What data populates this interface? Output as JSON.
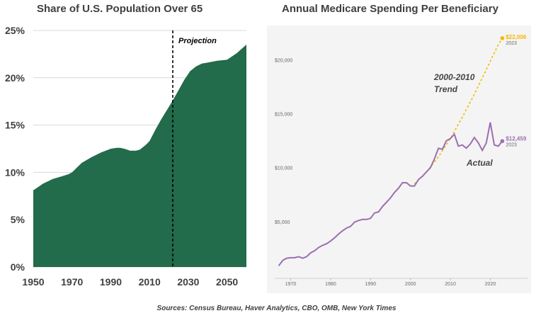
{
  "footer": "Sources: Census Bureau, Haver Analytics, CBO, OMB, New York Times",
  "colors": {
    "area_green": "#226b4b",
    "actual_purple": "#9b6fb0",
    "trend_gold": "#f5b800",
    "panel_bg": "#f4f4f4"
  },
  "chart_data": [
    {
      "type": "area",
      "title": "Share of U.S. Population  Over 65",
      "xlabel": "",
      "ylabel": "",
      "xlim": [
        1950,
        2060
      ],
      "ylim": [
        0,
        25
      ],
      "x_ticks": [
        "1950",
        "1970",
        "1990",
        "2010",
        "2030",
        "2050"
      ],
      "y_ticks": [
        "0%",
        "5%",
        "10%",
        "15%",
        "20%",
        "25%"
      ],
      "grid": true,
      "annotation": "Projection",
      "projection_start": 2022,
      "x": [
        1950,
        1955,
        1960,
        1965,
        1968,
        1970,
        1975,
        1980,
        1985,
        1990,
        1993,
        1995,
        1997,
        2000,
        2003,
        2005,
        2008,
        2010,
        2013,
        2016,
        2019,
        2022,
        2025,
        2028,
        2031,
        2034,
        2037,
        2040,
        2045,
        2050,
        2055,
        2060
      ],
      "values": [
        8.1,
        8.8,
        9.3,
        9.6,
        9.8,
        10.0,
        11.0,
        11.6,
        12.1,
        12.5,
        12.6,
        12.6,
        12.5,
        12.3,
        12.3,
        12.4,
        12.9,
        13.3,
        14.5,
        15.6,
        16.6,
        17.6,
        18.7,
        19.8,
        20.7,
        21.2,
        21.5,
        21.6,
        21.8,
        21.9,
        22.6,
        23.5
      ]
    },
    {
      "type": "line",
      "title": "Annual Medicare Spending Per Beneficiary",
      "xlabel": "",
      "ylabel": "",
      "xlim": [
        1966,
        2024
      ],
      "ylim": [
        0,
        22000
      ],
      "x_ticks": [
        "1970",
        "1980",
        "1990",
        "2000",
        "2010",
        "2020"
      ],
      "y_ticks": [
        "$5,000",
        "$10,000",
        "$15,000",
        "$20,000"
      ],
      "grid": false,
      "series": [
        {
          "name": "Actual",
          "x": [
            1967,
            1968,
            1969,
            1970,
            1971,
            1972,
            1973,
            1974,
            1975,
            1976,
            1977,
            1978,
            1979,
            1980,
            1981,
            1982,
            1983,
            1984,
            1985,
            1986,
            1987,
            1988,
            1989,
            1990,
            1991,
            1992,
            1993,
            1994,
            1995,
            1996,
            1997,
            1998,
            1999,
            2000,
            2001,
            2002,
            2003,
            2004,
            2005,
            2006,
            2007,
            2008,
            2009,
            2010,
            2011,
            2012,
            2013,
            2014,
            2015,
            2016,
            2017,
            2018,
            2019,
            2020,
            2021,
            2022,
            2023
          ],
          "values": [
            900,
            1400,
            1600,
            1650,
            1650,
            1750,
            1600,
            1750,
            2100,
            2300,
            2600,
            2800,
            2950,
            3200,
            3500,
            3850,
            4150,
            4400,
            4550,
            4950,
            5100,
            5200,
            5200,
            5300,
            5800,
            5900,
            6400,
            6800,
            7200,
            7700,
            8100,
            8600,
            8600,
            8300,
            8300,
            8900,
            9200,
            9600,
            10000,
            10800,
            11800,
            11700,
            12500,
            12700,
            13100,
            12000,
            12100,
            11800,
            12200,
            12800,
            12300,
            11600,
            12300,
            14200,
            12100,
            12000,
            12459
          ],
          "end_label": "$12,459",
          "end_year": "2023"
        },
        {
          "name": "2000-2010\nTrend",
          "x": [
            2001,
            2004,
            2007,
            2010,
            2013,
            2016,
            2019,
            2022,
            2023
          ],
          "values": [
            8500,
            9600,
            11000,
            12700,
            14700,
            16800,
            19100,
            21400,
            22006
          ],
          "end_label": "$22,006",
          "end_year": "2023"
        }
      ]
    }
  ]
}
